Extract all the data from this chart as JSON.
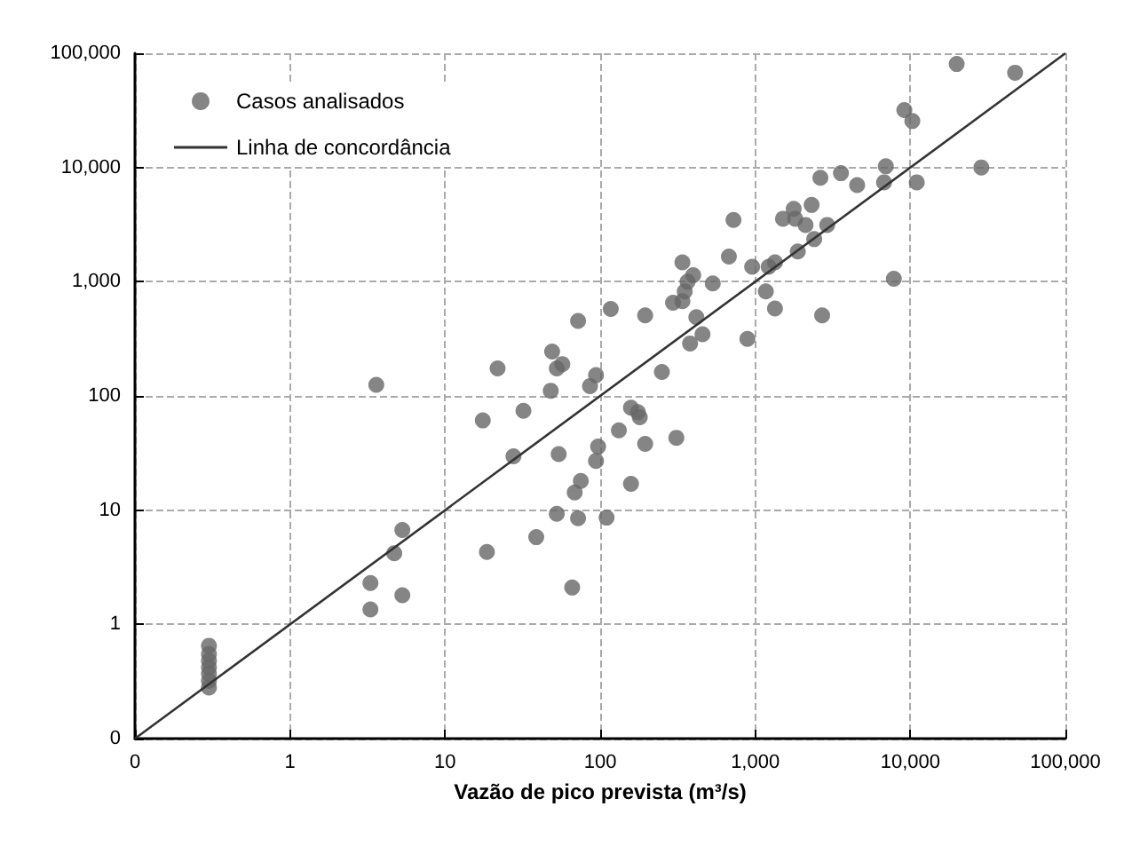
{
  "chart_data": {
    "type": "scatter",
    "xlabel": "Vazão de pico prevista (m³/s)",
    "xlim": [
      0.1,
      100000
    ],
    "ylim": [
      0.1,
      100000
    ],
    "xticks": [
      {
        "value": 0.1,
        "label": "0"
      },
      {
        "value": 1,
        "label": "1"
      },
      {
        "value": 10,
        "label": "10"
      },
      {
        "value": 100,
        "label": "100"
      },
      {
        "value": 1000,
        "label": "1,000"
      },
      {
        "value": 10000,
        "label": "10,000"
      },
      {
        "value": 100000,
        "label": "100,000"
      }
    ],
    "yticks": [
      {
        "value": 0.1,
        "label": "0"
      },
      {
        "value": 1,
        "label": "1"
      },
      {
        "value": 10,
        "label": "10"
      },
      {
        "value": 100,
        "label": "100"
      },
      {
        "value": 1000,
        "label": "1,000"
      },
      {
        "value": 10000,
        "label": "10,000"
      },
      {
        "value": 100000,
        "label": "100,000"
      }
    ],
    "log": "xy",
    "grid": true,
    "legend": "top left",
    "series": [
      {
        "name": "Casos analisados",
        "marker": "circle",
        "color": "#666666",
        "x": [
          0.3,
          0.3,
          0.3,
          0.3,
          0.3,
          0.3,
          0.3,
          3.6,
          5.3,
          4.7,
          3.3,
          5.3,
          3.3,
          17.5,
          21.8,
          32,
          27.6,
          18.6,
          38.7,
          48,
          52.5,
          57,
          54,
          52.5,
          66,
          72,
          68.5,
          75,
          94,
          97,
          86,
          94,
          110,
          132,
          158,
          175,
          180,
          158,
          49,
          72,
          117,
          195,
          195,
          250,
          310,
          295,
          339,
          351,
          366,
          398,
          339,
          417,
          457,
          380,
          532,
          676,
          724,
          890,
          955,
          1170,
          1340,
          1220,
          1340,
          1510,
          1770,
          1810,
          2110,
          2310,
          1880,
          2400,
          2910,
          2700,
          2630,
          3570,
          4540,
          19900,
          47400,
          9150,
          10300,
          28700,
          6950,
          6770,
          11000,
          7830
        ],
        "values": [
          0.65,
          0.55,
          0.48,
          0.42,
          0.37,
          0.32,
          0.28,
          125,
          6.7,
          4.2,
          2.3,
          1.8,
          1.35,
          61,
          174,
          74,
          29.6,
          4.3,
          5.8,
          111,
          174,
          190,
          31,
          9.3,
          2.1,
          8.5,
          14.3,
          18,
          27,
          36,
          122,
          152,
          8.6,
          50,
          79,
          72,
          65,
          17,
          245,
          454,
          577,
          38,
          508,
          162,
          43,
          655,
          676,
          822,
          1000,
          1140,
          1480,
          490,
          347,
          288,
          966,
          1660,
          3470,
          316,
          1350,
          822,
          583,
          1350,
          1480,
          3560,
          4340,
          3560,
          3140,
          4700,
          1840,
          2360,
          3140,
          508,
          8130,
          8910,
          7010,
          80500,
          67600,
          31800,
          25500,
          10000,
          10240,
          7410,
          7410,
          1060
        ]
      },
      {
        "name": "Linha de concordância",
        "type": "line",
        "marker": "none",
        "line_style": "solid",
        "color": "#333333",
        "x": [
          0.1,
          100000
        ],
        "values": [
          0.1,
          100000
        ]
      }
    ]
  }
}
